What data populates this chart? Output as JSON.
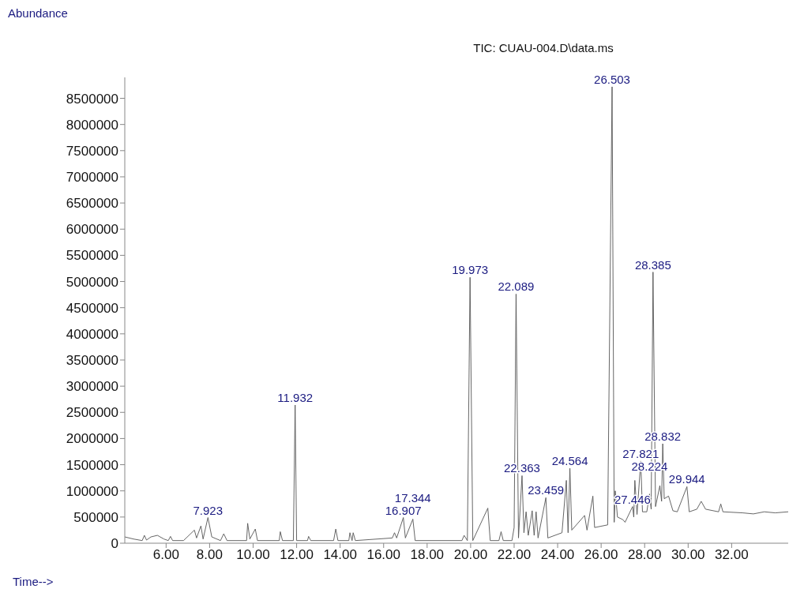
{
  "chart_data": {
    "type": "line",
    "title": "TIC: CUAU-004.D\\data.ms",
    "ylabel": "Abundance",
    "xlabel": "Time-->",
    "xlim": [
      4.1,
      34.6
    ],
    "ylim": [
      0,
      8900000
    ],
    "xticks": [
      {
        "value": 6,
        "label": "6.00"
      },
      {
        "value": 8,
        "label": "8.00"
      },
      {
        "value": 10,
        "label": "10.00"
      },
      {
        "value": 12,
        "label": "12.00"
      },
      {
        "value": 14,
        "label": "14.00"
      },
      {
        "value": 16,
        "label": "16.00"
      },
      {
        "value": 18,
        "label": "18.00"
      },
      {
        "value": 20,
        "label": "20.00"
      },
      {
        "value": 22,
        "label": "22.00"
      },
      {
        "value": 24,
        "label": "24.00"
      },
      {
        "value": 26,
        "label": "26.00"
      },
      {
        "value": 28,
        "label": "28.00"
      },
      {
        "value": 30,
        "label": "30.00"
      },
      {
        "value": 32,
        "label": "32.00"
      }
    ],
    "yticks": [
      0,
      500000,
      1000000,
      1500000,
      2000000,
      2500000,
      3000000,
      3500000,
      4000000,
      4500000,
      5000000,
      5500000,
      6000000,
      6500000,
      7000000,
      7500000,
      8000000,
      8500000
    ],
    "marker": "none",
    "line_style": "solid",
    "series": [
      {
        "color": "#555555",
        "x": [
          4.1,
          4.5,
          4.9,
          5.0,
          5.1,
          5.3,
          5.6,
          5.9,
          6.1,
          6.2,
          6.3,
          6.8,
          7.3,
          7.4,
          7.6,
          7.7,
          7.923,
          8.1,
          8.5,
          8.65,
          8.8,
          9.7,
          9.75,
          9.85,
          10.1,
          10.2,
          11.2,
          11.25,
          11.35,
          11.85,
          11.932,
          12.0,
          12.5,
          12.55,
          12.65,
          13.7,
          13.8,
          13.9,
          14.4,
          14.45,
          14.55,
          14.6,
          14.7,
          16.4,
          16.5,
          16.6,
          16.907,
          17.0,
          17.344,
          17.45,
          19.6,
          19.7,
          19.85,
          19.973,
          20.1,
          20.79,
          20.9,
          21.3,
          21.4,
          21.5,
          21.9,
          22.0,
          22.089,
          22.2,
          22.363,
          22.45,
          22.55,
          22.65,
          22.83,
          22.92,
          23.01,
          23.1,
          23.459,
          23.55,
          24.2,
          24.4,
          24.48,
          24.564,
          24.65,
          25.24,
          25.35,
          25.62,
          25.7,
          26.3,
          26.503,
          26.6,
          26.65,
          26.75,
          27.0,
          27.1,
          27.446,
          27.5,
          27.55,
          27.65,
          27.821,
          27.9,
          28.1,
          28.224,
          28.3,
          28.385,
          28.5,
          28.7,
          28.78,
          28.832,
          28.9,
          29.1,
          29.3,
          29.5,
          29.944,
          30.05,
          30.4,
          30.6,
          30.8,
          31.4,
          31.5,
          31.6,
          32.5,
          33.0,
          33.5,
          34.0,
          34.6
        ],
        "values": [
          120000,
          80000,
          50000,
          150000,
          60000,
          120000,
          150000,
          80000,
          50000,
          130000,
          50000,
          50000,
          250000,
          100000,
          330000,
          80000,
          490000,
          120000,
          50000,
          180000,
          50000,
          50000,
          380000,
          80000,
          270000,
          50000,
          50000,
          220000,
          50000,
          50000,
          2640000,
          50000,
          50000,
          130000,
          50000,
          50000,
          270000,
          50000,
          50000,
          200000,
          50000,
          200000,
          50000,
          100000,
          200000,
          100000,
          490000,
          100000,
          460000,
          50000,
          50000,
          150000,
          50000,
          5080000,
          50000,
          670000,
          50000,
          50000,
          220000,
          50000,
          50000,
          300000,
          4760000,
          100000,
          1290000,
          200000,
          600000,
          150000,
          620000,
          150000,
          600000,
          100000,
          870000,
          100000,
          200000,
          1200000,
          200000,
          1430000,
          250000,
          530000,
          250000,
          900000,
          300000,
          350000,
          8720000,
          400000,
          1000000,
          500000,
          450000,
          400000,
          700000,
          500000,
          1200000,
          550000,
          1570000,
          600000,
          600000,
          940000,
          650000,
          5180000,
          700000,
          1100000,
          800000,
          1900000,
          850000,
          900000,
          620000,
          600000,
          1080000,
          600000,
          650000,
          800000,
          650000,
          600000,
          750000,
          600000,
          580000,
          560000,
          600000,
          580000,
          600000
        ]
      }
    ],
    "annotations": [
      {
        "text": "7.923",
        "x": 7.923,
        "y": 490000
      },
      {
        "text": "11.932",
        "x": 11.932,
        "y": 2640000
      },
      {
        "text": "16.907",
        "x": 16.907,
        "y": 490000
      },
      {
        "text": "17.344",
        "x": 17.344,
        "y": 460000
      },
      {
        "text": "19.973",
        "x": 19.973,
        "y": 5080000
      },
      {
        "text": "22.089",
        "x": 22.089,
        "y": 4760000
      },
      {
        "text": "22.363",
        "x": 22.363,
        "y": 1290000
      },
      {
        "text": "23.459",
        "x": 23.459,
        "y": 870000
      },
      {
        "text": "24.564",
        "x": 24.564,
        "y": 1430000
      },
      {
        "text": "26.503",
        "x": 26.503,
        "y": 8720000
      },
      {
        "text": "27.446",
        "x": 27.446,
        "y": 700000
      },
      {
        "text": "27.821",
        "x": 27.821,
        "y": 1570000
      },
      {
        "text": "28.224",
        "x": 28.224,
        "y": 940000
      },
      {
        "text": "28.385",
        "x": 28.385,
        "y": 5180000
      },
      {
        "text": "28.832",
        "x": 28.832,
        "y": 1900000
      },
      {
        "text": "29.944",
        "x": 29.944,
        "y": 1080000
      }
    ]
  }
}
